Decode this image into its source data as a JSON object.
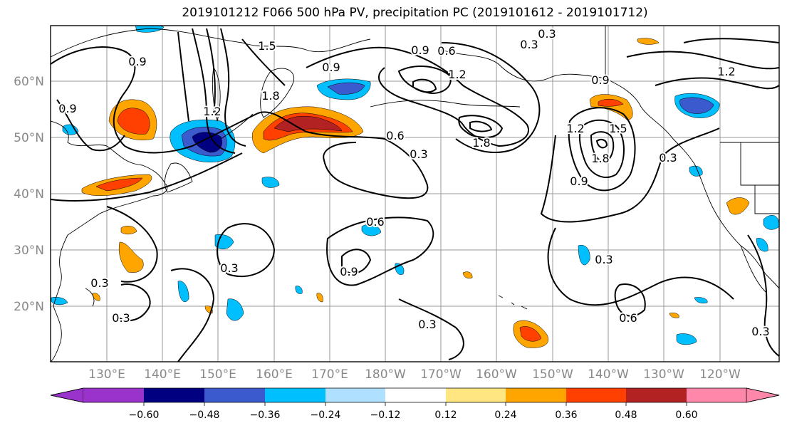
{
  "title": "2019101212 F066 500 hPa PV, precipitation PC (2019101612 - 2019101712)",
  "lat_labels": [
    "60°N",
    "50°N",
    "40°N",
    "30°N",
    "20°N"
  ],
  "lon_labels": [
    "130°E",
    "140°E",
    "150°E",
    "160°E",
    "170°E",
    "180°W",
    "170°W",
    "160°W",
    "150°W",
    "140°W",
    "130°W",
    "120°W"
  ],
  "contour_labels": [
    "0.3",
    "0.6",
    "0.9",
    "1.2",
    "1.5",
    "1.8"
  ],
  "colorbar": {
    "ticks": [
      "−0.60",
      "−0.48",
      "−0.36",
      "−0.24",
      "−0.12",
      "0.12",
      "0.24",
      "0.36",
      "0.48",
      "0.60"
    ],
    "colors": [
      "#9933cc",
      "#000080",
      "#3a5acd",
      "#00bfff",
      "#b0e0ff",
      "#ffffff",
      "#ffe680",
      "#ffa500",
      "#ff4000",
      "#b22222",
      "#ff88aa"
    ]
  },
  "colors": {
    "land_outline": "#000000",
    "grid": "#999999",
    "tick_label": "#888888"
  }
}
